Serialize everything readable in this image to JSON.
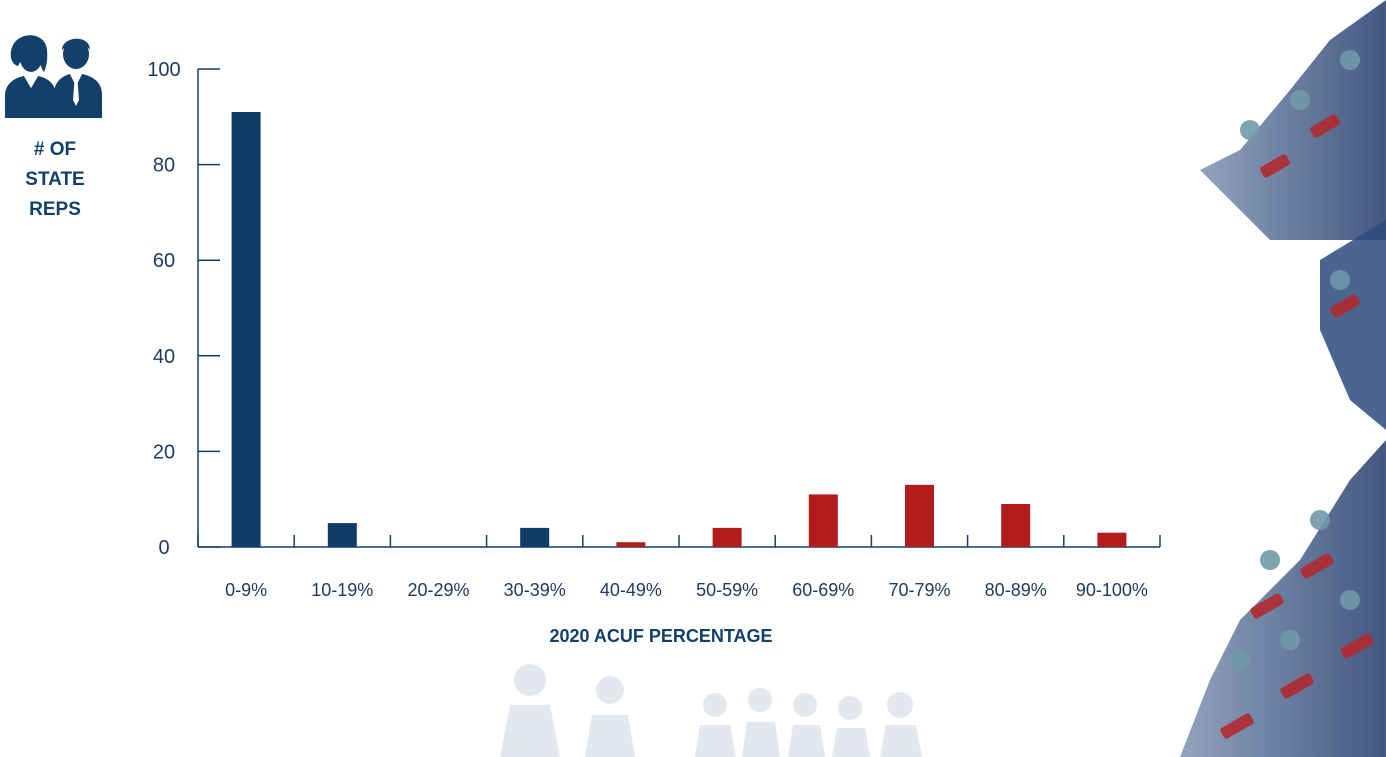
{
  "colors": {
    "blue": "#0d3c66",
    "red": "#b31c1c",
    "axis": "#173f63",
    "text": "#1e3a5f"
  },
  "icons": {
    "people": "people-icon"
  },
  "ylabel_lines": [
    "# OF",
    "STATE",
    "REPS"
  ],
  "chart_data": {
    "type": "bar",
    "title": "",
    "xlabel": "2020 ACUF PERCENTAGE",
    "ylabel": "# OF STATE REPS",
    "categories": [
      "0-9%",
      "10-19%",
      "20-29%",
      "30-39%",
      "40-49%",
      "50-59%",
      "60-69%",
      "70-79%",
      "80-89%",
      "90-100%"
    ],
    "series": [
      {
        "color": "#0d3c66",
        "values": [
          91,
          5,
          0,
          4,
          null,
          null,
          null,
          null,
          null,
          null
        ]
      },
      {
        "color": "#b31c1c",
        "values": [
          null,
          null,
          null,
          null,
          1,
          4,
          11,
          13,
          9,
          3
        ]
      }
    ],
    "ylim": [
      0,
      100
    ],
    "yticks": [
      0,
      20,
      40,
      60,
      80,
      100
    ],
    "grid": false,
    "legend": "none"
  }
}
